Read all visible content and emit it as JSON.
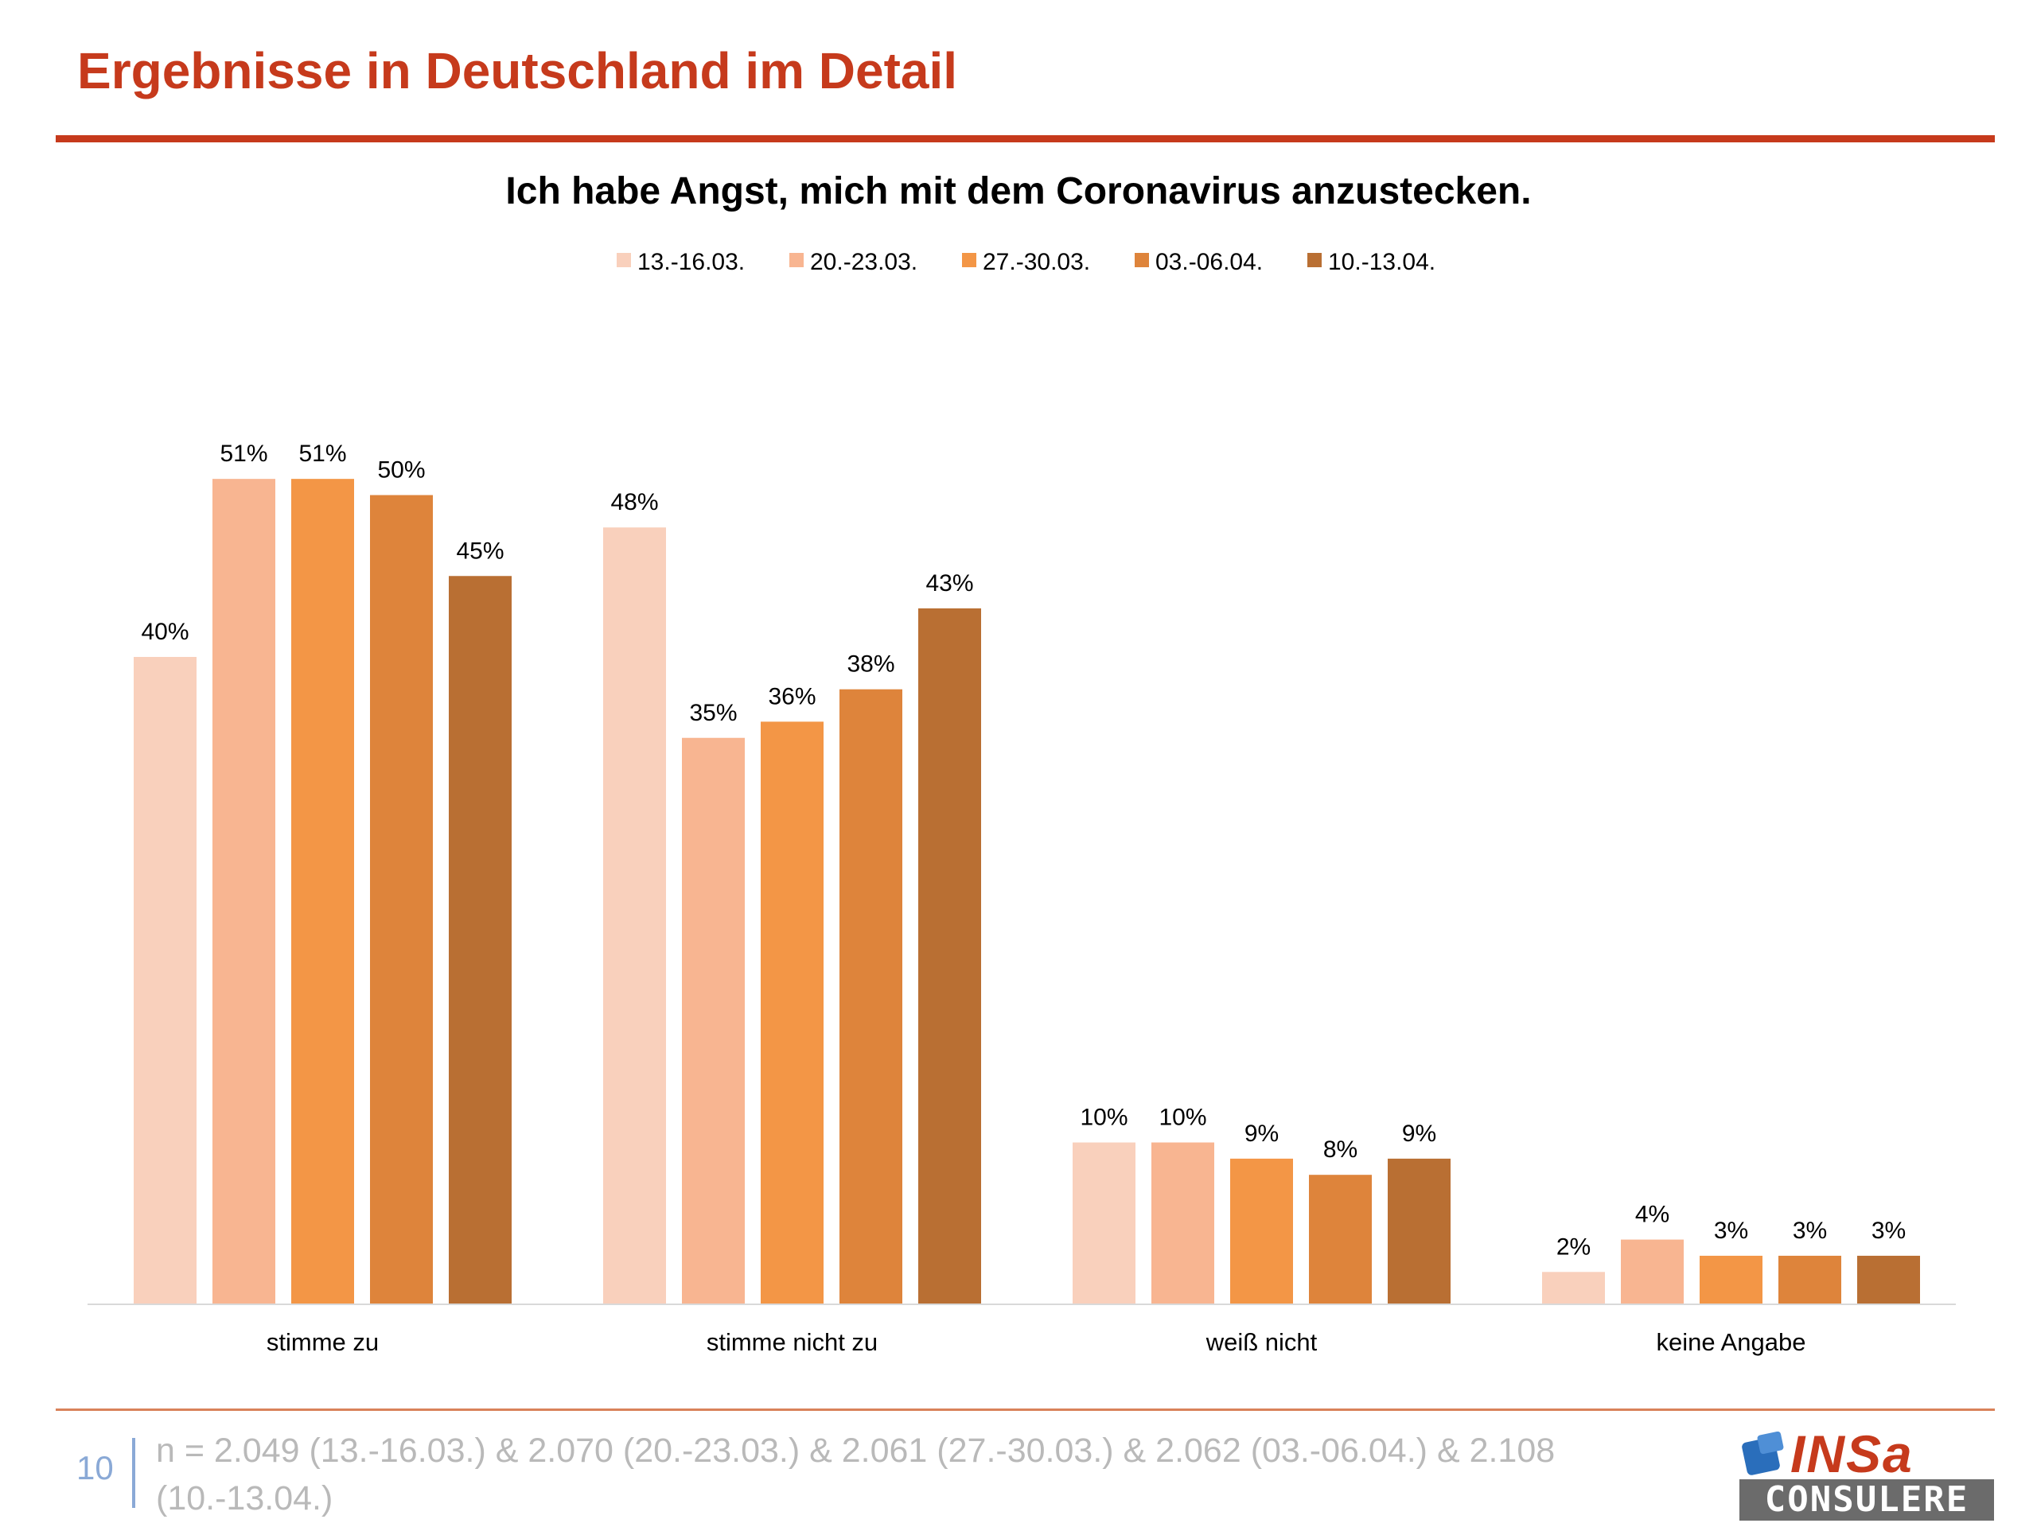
{
  "header": {
    "title": "Ergebnisse in Deutschland im Detail"
  },
  "chart_data": {
    "type": "bar",
    "title": "Ich habe Angst, mich mit dem Coronavirus anzustecken.",
    "xlabel": "",
    "ylabel": "",
    "ylim": [
      0,
      52
    ],
    "grid": false,
    "legend_position": "top",
    "unit_suffix": "%",
    "categories": [
      "stimme zu",
      "stimme nicht zu",
      "weiß nicht",
      "keine Angabe"
    ],
    "series": [
      {
        "name": "13.-16.03.",
        "color": "#f9d0bc",
        "values": [
          40,
          48,
          10,
          2
        ]
      },
      {
        "name": "20.-23.03.",
        "color": "#f8b591",
        "values": [
          51,
          35,
          10,
          4
        ]
      },
      {
        "name": "27.-30.03.",
        "color": "#f39646",
        "values": [
          51,
          36,
          9,
          3
        ]
      },
      {
        "name": "03.-06.04.",
        "color": "#de843b",
        "values": [
          50,
          38,
          8,
          3
        ]
      },
      {
        "name": "10.-13.04.",
        "color": "#b96f33",
        "values": [
          45,
          43,
          9,
          3
        ]
      }
    ]
  },
  "footer": {
    "page_number": "10",
    "note": "n = 2.049 (13.-16.03.) & 2.070 (20.-23.03.) & 2.061 (27.-30.03.) & 2.062 (03.-06.04.) & 2.108 (10.-13.04.)"
  },
  "logo": {
    "top_text": "INSa",
    "bottom_text": "CONSULERE",
    "primary_color": "#c63a1c",
    "mark_color": "#2a6ebb"
  }
}
